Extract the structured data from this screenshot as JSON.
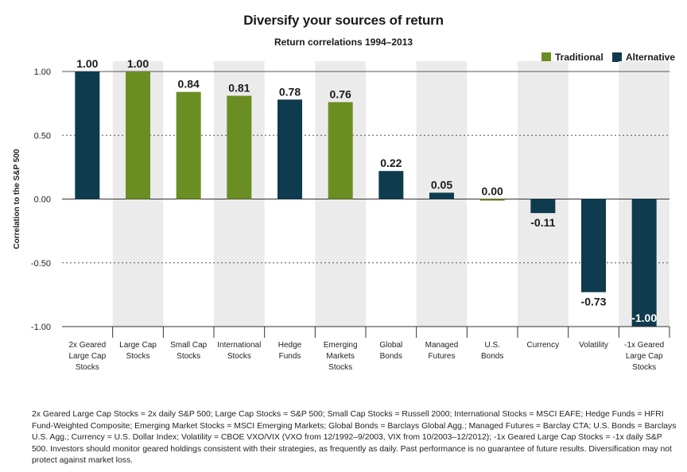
{
  "chart_data": {
    "type": "bar",
    "title": "Diversify your sources of return",
    "subtitle": "Return correlations 1994–2013",
    "ylabel": "Correlation to the S&P 500",
    "xlabel": "",
    "ylim": [
      -1.0,
      1.0
    ],
    "yticks": [
      1.0,
      0.5,
      0.0,
      -0.5,
      -1.0
    ],
    "ytick_labels": [
      "1.00",
      "0.50",
      "0.00",
      "-0.50",
      "-1.00"
    ],
    "grid": "dotted horizontal at 0.50 and -0.50",
    "categories": [
      [
        "2x Geared",
        "Large Cap",
        "Stocks"
      ],
      [
        "Large Cap",
        "Stocks"
      ],
      [
        "Small Cap",
        "Stocks"
      ],
      [
        "International",
        "Stocks"
      ],
      [
        "Hedge",
        "Funds"
      ],
      [
        "Emerging",
        "Markets",
        "Stocks"
      ],
      [
        "Global",
        "Bonds"
      ],
      [
        "Managed",
        "Futures"
      ],
      [
        "U.S.",
        "Bonds"
      ],
      [
        "Currency"
      ],
      [
        "Volatility"
      ],
      [
        "-1x Geared",
        "Large Cap",
        "Stocks"
      ]
    ],
    "values": [
      1.0,
      1.0,
      0.84,
      0.81,
      0.78,
      0.76,
      0.22,
      0.05,
      0.0,
      -0.11,
      -0.73,
      -1.0
    ],
    "value_labels": [
      "1.00",
      "1.00",
      "0.84",
      "0.81",
      "0.78",
      "0.76",
      "0.22",
      "0.05",
      "0.00",
      "-0.11",
      "-0.73",
      "-1.00"
    ],
    "groups": [
      "Alternative",
      "Traditional",
      "Traditional",
      "Traditional",
      "Alternative",
      "Traditional",
      "Alternative",
      "Alternative",
      "Traditional",
      "Alternative",
      "Alternative",
      "Alternative"
    ],
    "legend": [
      {
        "name": "Traditional",
        "color": "#6b8e23"
      },
      {
        "name": "Alternative",
        "color": "#0e3b4e"
      }
    ],
    "legend_position": "top-right",
    "shading_color": "#ebebeb"
  },
  "footnote": "2x Geared Large Cap Stocks = 2x daily S&P 500; Large Cap Stocks = S&P 500; Small Cap Stocks = Russell 2000; International Stocks = MSCI EAFE; Hedge Funds = HFRI Fund-Weighted Composite; Emerging Market Stocks = MSCI Emerging Markets; Global Bonds = Barclays Global Agg.; Managed Futures = Barclay CTA; U.S. Bonds = Barclays U.S. Agg.; Currency = U.S. Dollar Index; Volatility = CBOE VXO/VIX (VXO from 12/1992–9/2003, VIX from 10/2003–12/2012); -1x Geared Large Cap Stocks = -1x daily S&P 500. Investors should monitor geared holdings consistent with their strategies, as frequently as daily. Past performance is no guarantee of future results. Diversification may not protect against market loss."
}
